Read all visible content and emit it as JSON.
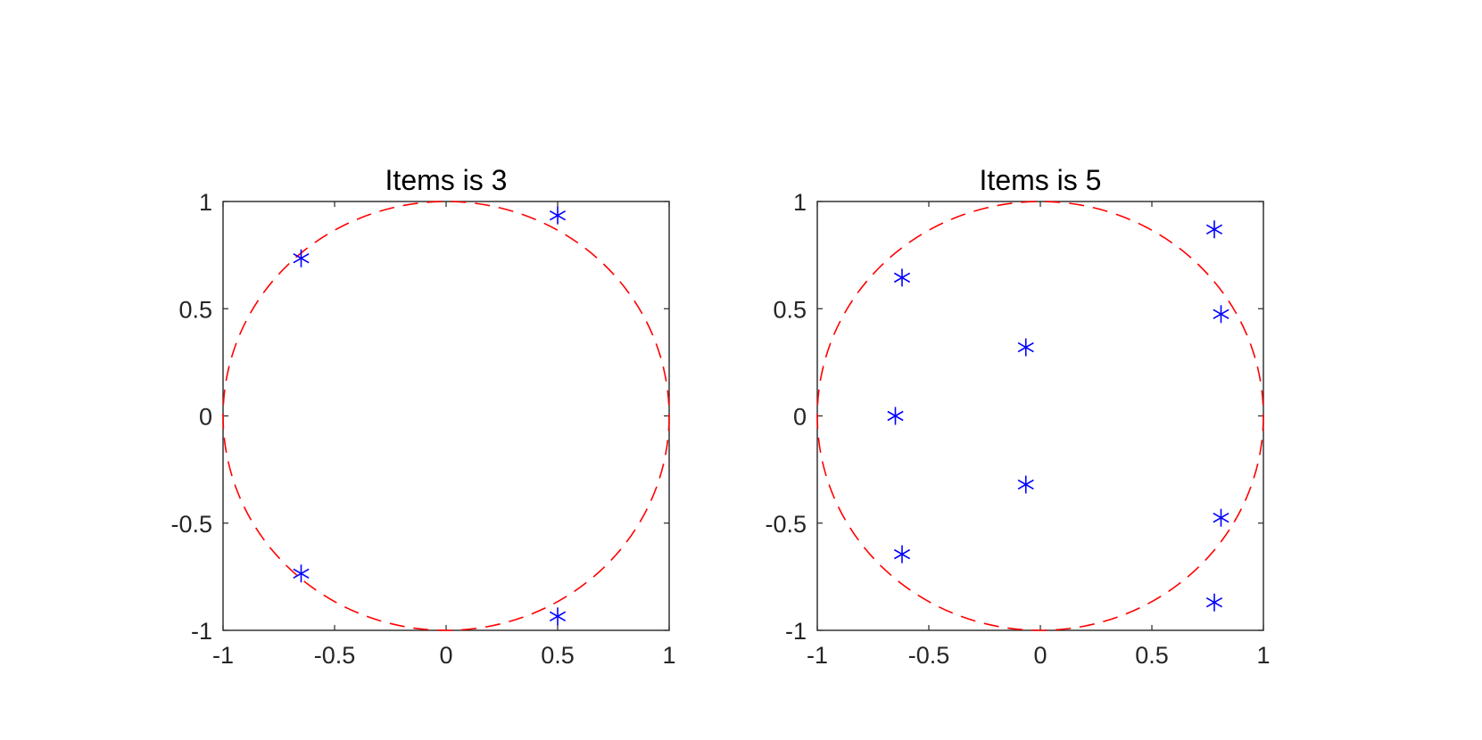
{
  "chart_data": [
    {
      "type": "scatter",
      "title": "Items is 3",
      "xlim": [
        -1,
        1
      ],
      "ylim": [
        -1,
        1
      ],
      "xticks": [
        "-1",
        "-0.5",
        "0",
        "0.5",
        "1"
      ],
      "yticks": [
        "1",
        "0.5",
        "0",
        "-0.5",
        "-1"
      ],
      "xtick_values": [
        -1,
        -0.5,
        0,
        0.5,
        1
      ],
      "ytick_values": [
        1,
        0.5,
        0,
        -0.5,
        -1
      ],
      "circle": {
        "center": [
          0,
          0
        ],
        "radius": 1,
        "style": "dashed",
        "color": "#ff0000"
      },
      "marker": {
        "shape": "asterisk",
        "color": "#0000ff"
      },
      "points": [
        {
          "x": -0.65,
          "y": 0.735
        },
        {
          "x": 0.5,
          "y": 0.935
        },
        {
          "x": -0.65,
          "y": -0.735
        },
        {
          "x": 0.5,
          "y": -0.935
        }
      ],
      "grid": false
    },
    {
      "type": "scatter",
      "title": "Items is 5",
      "xlim": [
        -1,
        1
      ],
      "ylim": [
        -1,
        1
      ],
      "xticks": [
        "-1",
        "-0.5",
        "0",
        "0.5",
        "1"
      ],
      "yticks": [
        "1",
        "0.5",
        "0",
        "-0.5",
        "-1"
      ],
      "xtick_values": [
        -1,
        -0.5,
        0,
        0.5,
        1
      ],
      "ytick_values": [
        1,
        0.5,
        0,
        -0.5,
        -1
      ],
      "circle": {
        "center": [
          0,
          0
        ],
        "radius": 1,
        "style": "dashed",
        "color": "#ff0000"
      },
      "marker": {
        "shape": "asterisk",
        "color": "#0000ff"
      },
      "points": [
        {
          "x": -0.62,
          "y": 0.645
        },
        {
          "x": 0.78,
          "y": 0.87
        },
        {
          "x": 0.81,
          "y": 0.475
        },
        {
          "x": -0.065,
          "y": 0.32
        },
        {
          "x": -0.65,
          "y": 0.0
        },
        {
          "x": -0.065,
          "y": -0.32
        },
        {
          "x": 0.81,
          "y": -0.475
        },
        {
          "x": -0.62,
          "y": -0.645
        },
        {
          "x": 0.78,
          "y": -0.87
        }
      ],
      "grid": false
    }
  ]
}
